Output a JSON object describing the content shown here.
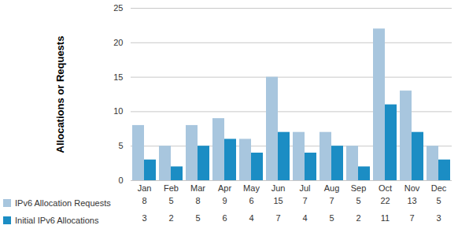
{
  "chart_data": {
    "type": "bar",
    "categories": [
      "Jan",
      "Feb",
      "Mar",
      "Apr",
      "May",
      "Jun",
      "Jul",
      "Aug",
      "Sep",
      "Oct",
      "Nov",
      "Dec"
    ],
    "series": [
      {
        "name": "IPv6 Allocation Requests",
        "color": "#a8c6de",
        "values": [
          8,
          5,
          8,
          9,
          6,
          15,
          7,
          7,
          5,
          22,
          13,
          5
        ]
      },
      {
        "name": "Initial IPv6 Allocations",
        "color": "#1b8dc4",
        "values": [
          3,
          2,
          5,
          6,
          4,
          7,
          4,
          5,
          2,
          11,
          7,
          3
        ]
      }
    ],
    "ylabel": "Allocations or Requests",
    "ylim": [
      0,
      25
    ],
    "yticks": [
      0,
      5,
      10,
      15,
      20,
      25
    ],
    "grid": true,
    "data_labels": true
  }
}
